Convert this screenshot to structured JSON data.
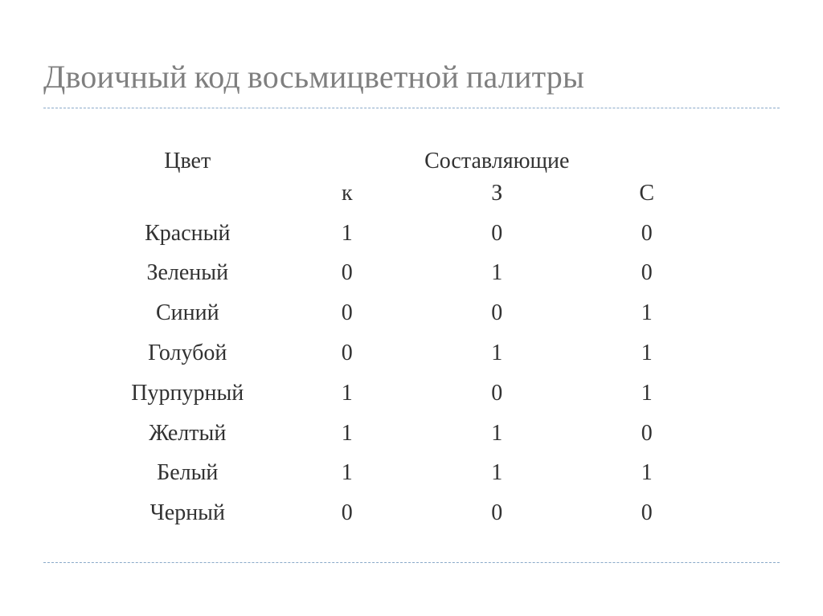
{
  "title": "Двоичный код восьмицветной палитры",
  "table": {
    "type": "table",
    "header_color_label": "Цвет",
    "header_components_label": "Составляющие",
    "sub_headers": {
      "k": "к",
      "z": "З",
      "s": "С"
    },
    "columns": [
      "Цвет",
      "к",
      "З",
      "С"
    ],
    "rows": [
      {
        "name": "Красный",
        "k": "1",
        "z": "0",
        "s": "0"
      },
      {
        "name": "Зеленый",
        "k": "0",
        "z": "1",
        "s": "0"
      },
      {
        "name": "Синий",
        "k": "0",
        "z": "0",
        "s": "1"
      },
      {
        "name": "Голубой",
        "k": "0",
        "z": "1",
        "s": "1"
      },
      {
        "name": "Пурпурный",
        "k": "1",
        "z": "0",
        "s": "1"
      },
      {
        "name": "Желтый",
        "k": "1",
        "z": "1",
        "s": "0"
      },
      {
        "name": "Белый",
        "k": "1",
        "z": "1",
        "s": "1"
      },
      {
        "name": "Черный",
        "k": "0",
        "z": "0",
        "s": "0"
      }
    ],
    "text_color": "#323232",
    "font_size_pt": 21,
    "background_color": "#ffffff"
  },
  "style": {
    "title_color": "#7f7f7f",
    "title_fontsize_pt": 30,
    "rule_color": "#8aa9c9",
    "rule_style": "dashed"
  }
}
